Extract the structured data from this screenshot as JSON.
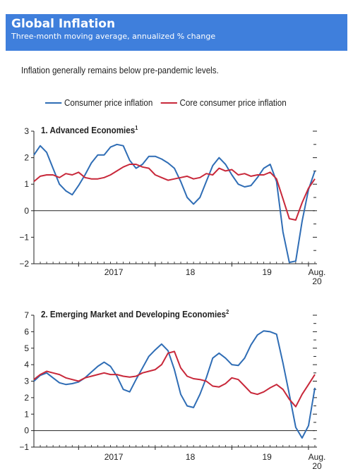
{
  "header": {
    "title": "Global Inflation",
    "subtitle": "Three-month moving average, annualized % change"
  },
  "intro_text": "Inflation generally remains below pre-pandemic levels.",
  "legend": [
    {
      "label": "Consumer price inflation",
      "color": "#2f6db5"
    },
    {
      "label": "Core consumer price inflation",
      "color": "#c8283a"
    }
  ],
  "chart_data": [
    {
      "type": "line",
      "title_number": "1.",
      "title": "Advanced Economies",
      "footnote": "1",
      "ylim": [
        -2,
        3
      ],
      "yticks": [
        "3",
        "2",
        "1",
        "0",
        "−1",
        "−2"
      ],
      "x_labels": [
        "2017",
        "18",
        "19",
        "Aug."
      ],
      "x_label_last_line2": "20",
      "x_start_month": "2016-06",
      "series": [
        {
          "name": "Consumer price inflation",
          "color": "#2f6db5",
          "values": [
            2.1,
            2.45,
            2.2,
            1.6,
            1.0,
            0.75,
            0.6,
            0.95,
            1.35,
            1.8,
            2.1,
            2.1,
            2.4,
            2.5,
            2.45,
            1.9,
            1.6,
            1.75,
            2.05,
            2.05,
            1.95,
            1.8,
            1.6,
            1.1,
            0.5,
            0.25,
            0.5,
            1.1,
            1.7,
            2.0,
            1.75,
            1.35,
            1.0,
            0.9,
            0.95,
            1.25,
            1.6,
            1.75,
            1.1,
            -0.8,
            -1.95,
            -1.9,
            -0.4,
            0.8,
            1.5
          ]
        },
        {
          "name": "Core consumer price inflation",
          "color": "#c8283a",
          "values": [
            1.1,
            1.3,
            1.35,
            1.35,
            1.25,
            1.4,
            1.35,
            1.45,
            1.25,
            1.2,
            1.2,
            1.25,
            1.35,
            1.5,
            1.65,
            1.75,
            1.75,
            1.65,
            1.6,
            1.35,
            1.25,
            1.15,
            1.2,
            1.25,
            1.3,
            1.2,
            1.25,
            1.4,
            1.35,
            1.6,
            1.5,
            1.55,
            1.35,
            1.4,
            1.3,
            1.35,
            1.35,
            1.45,
            1.2,
            0.45,
            -0.3,
            -0.35,
            0.3,
            0.85,
            1.2
          ]
        }
      ]
    },
    {
      "type": "line",
      "title_number": "2.",
      "title": "Emerging Market and Developing Economies",
      "footnote": "2",
      "ylim": [
        -1,
        7
      ],
      "yticks": [
        "7",
        "6",
        "5",
        "4",
        "3",
        "2",
        "1",
        "0",
        "−1"
      ],
      "x_labels": [
        "2017",
        "18",
        "19",
        "Aug."
      ],
      "x_label_last_line2": "20",
      "x_start_month": "2016-06",
      "series": [
        {
          "name": "Consumer price inflation",
          "color": "#2f6db5",
          "values": [
            3.0,
            3.35,
            3.5,
            3.2,
            2.9,
            2.8,
            2.85,
            2.95,
            3.2,
            3.55,
            3.9,
            4.15,
            3.9,
            3.3,
            2.5,
            2.35,
            3.1,
            3.8,
            4.5,
            4.9,
            5.25,
            4.85,
            3.7,
            2.2,
            1.5,
            1.4,
            2.2,
            3.2,
            4.4,
            4.7,
            4.4,
            4.0,
            3.95,
            4.4,
            5.2,
            5.8,
            6.05,
            6.0,
            5.85,
            4.1,
            2.2,
            0.2,
            -0.45,
            0.3,
            2.6
          ]
        },
        {
          "name": "Core consumer price inflation",
          "color": "#c8283a",
          "values": [
            3.1,
            3.4,
            3.6,
            3.5,
            3.4,
            3.2,
            3.1,
            3.0,
            3.2,
            3.3,
            3.4,
            3.5,
            3.4,
            3.4,
            3.3,
            3.25,
            3.3,
            3.5,
            3.6,
            3.7,
            4.0,
            4.7,
            4.8,
            3.8,
            3.3,
            3.15,
            3.1,
            3.0,
            2.7,
            2.65,
            2.85,
            3.2,
            3.1,
            2.7,
            2.3,
            2.2,
            2.35,
            2.6,
            2.8,
            2.5,
            1.9,
            1.45,
            2.2,
            2.8,
            3.4
          ]
        }
      ]
    }
  ]
}
